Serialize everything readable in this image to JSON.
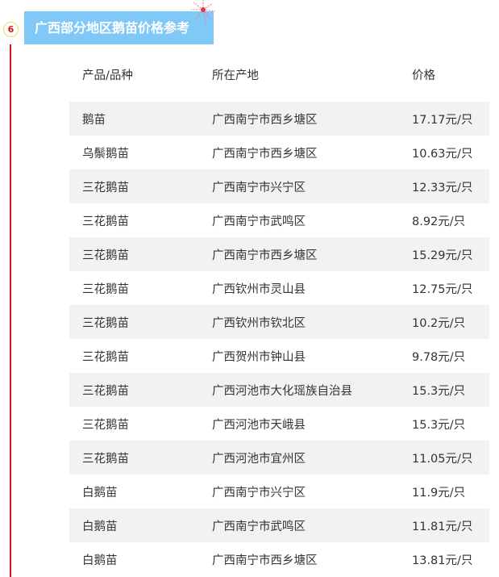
{
  "section": {
    "number": "6",
    "title": "广西部分地区鹅苗价格参考",
    "accent": "#7fc8f8",
    "line_color": "#d3141c"
  },
  "table": {
    "headers": [
      "产品/品种",
      "所在产地",
      "价格"
    ],
    "rows": [
      [
        "鹅苗",
        "广西南宁市西乡塘区",
        "17.17元/只"
      ],
      [
        "乌鬃鹅苗",
        "广西南宁市西乡塘区",
        "10.63元/只"
      ],
      [
        "三花鹅苗",
        "广西南宁市兴宁区",
        "12.33元/只"
      ],
      [
        "三花鹅苗",
        "广西南宁市武鸣区",
        "8.92元/只"
      ],
      [
        "三花鹅苗",
        "广西南宁市西乡塘区",
        "15.29元/只"
      ],
      [
        "三花鹅苗",
        "广西钦州市灵山县",
        "12.75元/只"
      ],
      [
        "三花鹅苗",
        "广西钦州市钦北区",
        "10.2元/只"
      ],
      [
        "三花鹅苗",
        "广西贺州市钟山县",
        "9.78元/只"
      ],
      [
        "三花鹅苗",
        "广西河池市大化瑶族自治县",
        "15.3元/只"
      ],
      [
        "三花鹅苗",
        "广西河池市天峨县",
        "15.3元/只"
      ],
      [
        "三花鹅苗",
        "广西河池市宜州区",
        "11.05元/只"
      ],
      [
        "白鹅苗",
        "广西南宁市兴宁区",
        "11.9元/只"
      ],
      [
        "白鹅苗",
        "广西南宁市武鸣区",
        "11.81元/只"
      ],
      [
        "白鹅苗",
        "广西南宁市西乡塘区",
        "13.81元/只"
      ]
    ]
  }
}
